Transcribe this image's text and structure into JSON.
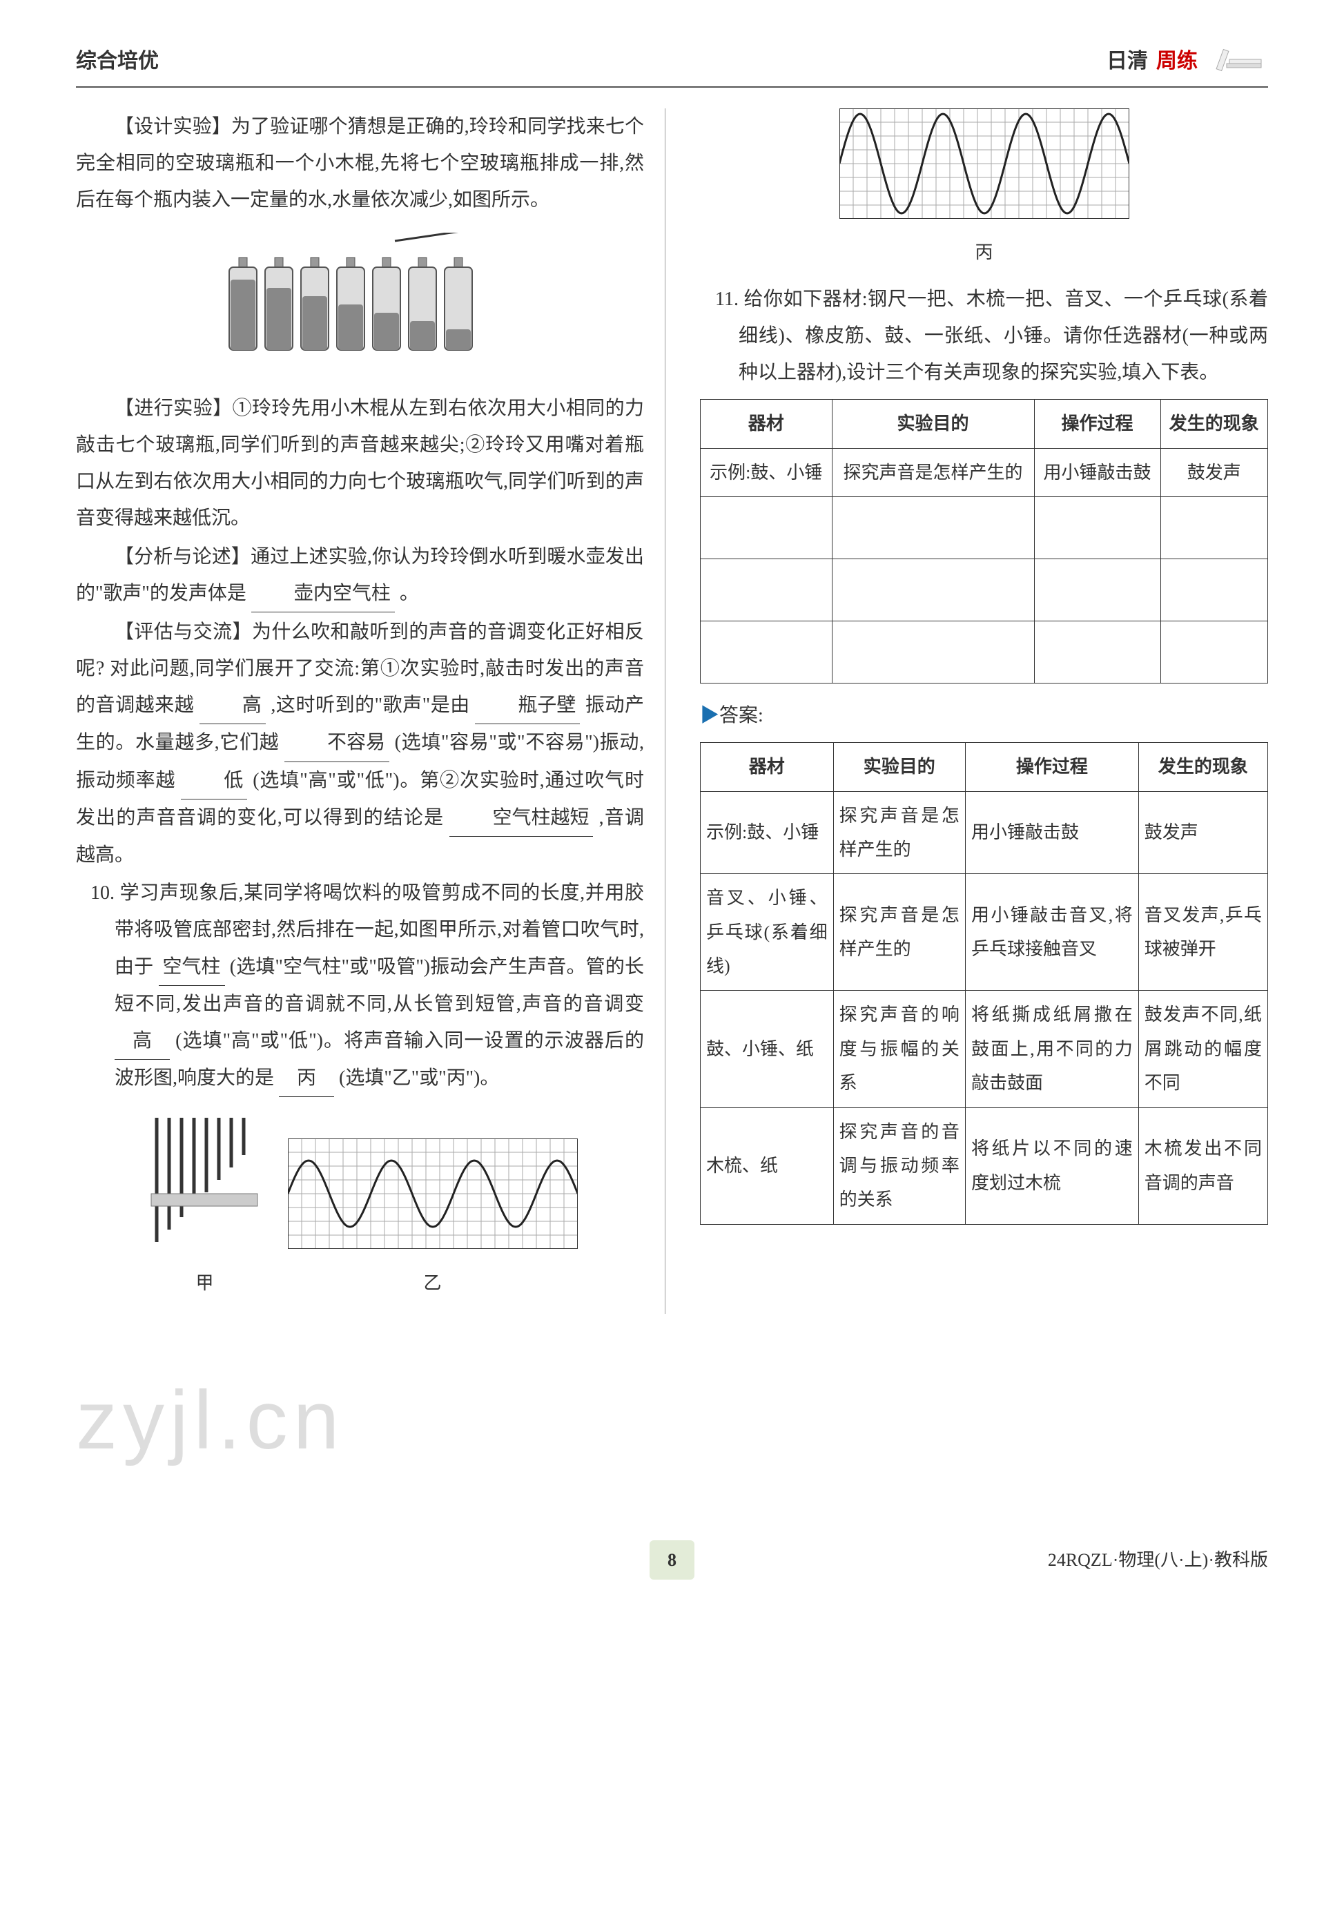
{
  "header": {
    "left": "综合培优",
    "right1": "日清",
    "right2": "周练"
  },
  "left_col": {
    "p1": "【设计实验】为了验证哪个猜想是正确的,玲玲和同学找来七个完全相同的空玻璃瓶和一个小木棍,先将七个空玻璃瓶排成一排,然后在每个瓶内装入一定量的水,水量依次减少,如图所示。",
    "bottles": {
      "count": 7,
      "fill_levels": [
        0.85,
        0.75,
        0.65,
        0.55,
        0.45,
        0.35,
        0.25
      ],
      "bottle_color": "#666",
      "water_color": "#888"
    },
    "p2": "【进行实验】①玲玲先用小木棍从左到右依次用大小相同的力敲击七个玻璃瓶,同学们听到的声音越来越尖;②玲玲又用嘴对着瓶口从左到右依次用大小相同的力向七个玻璃瓶吹气,同学们听到的声音变得越来越低沉。",
    "p3a": "【分析与论述】通过上述实验,你认为玲玲倒水听到暖水壶发出的\"歌声\"的发声体是",
    "p3_blank": "壶内空气柱",
    "p3b": "。",
    "p4a": "【评估与交流】为什么吹和敲听到的声音的音调变化正好相反呢? 对此问题,同学们展开了交流:第①次实验时,敲击时发出的声音的音调越来越",
    "p4_blank1": "高",
    "p4b": ",这时听到的\"歌声\"是由",
    "p4_blank2": "瓶子壁",
    "p4c": "振动产生的。水量越多,它们越",
    "p4_blank3": "不容易",
    "p4d": "(选填\"容易\"或\"不容易\")振动,振动频率越",
    "p4_blank4": "低",
    "p4e": "(选填\"高\"或\"低\")。第②次实验时,通过吹气时发出的声音音调的变化,可以得到的结论是",
    "p4_blank5": "空气柱越短",
    "p4f": ",音调越高。",
    "q10_num": "10.",
    "q10a": "学习声现象后,某同学将喝饮料的吸管剪成不同的长度,并用胶带将吸管底部密封,然后排在一起,如图甲所示,对着管口吹气时,由于",
    "q10_blank1": "空气柱",
    "q10b": "(选填\"空气柱\"或\"吸管\")振动会产生声音。管的长短不同,发出声音的音调就不同,从长管到短管,声音的音调变",
    "q10_blank2": "高",
    "q10c": "(选填\"高\"或\"低\")。将声音输入同一设置的示波器后的波形图,响度大的是",
    "q10_blank3": "丙",
    "q10d": "(选填\"乙\"或\"丙\")。",
    "fig_labels": {
      "jia": "甲",
      "yi": "乙"
    }
  },
  "right_col": {
    "fig_bing": "丙",
    "q11_num": "11.",
    "q11": "给你如下器材:钢尺一把、木梳一把、音叉、一个乒乓球(系着细线)、橡皮筋、鼓、一张纸、小锤。请你任选器材(一种或两种以上器材),设计三个有关声现象的探究实验,填入下表。",
    "table_blank": {
      "headers": [
        "器材",
        "实验目的",
        "操作过程",
        "发生的现象"
      ],
      "example_row": [
        "示例:鼓、小锤",
        "探究声音是怎样产生的",
        "用小锤敲击鼓",
        "鼓发声"
      ],
      "empty_rows": 3
    },
    "answer_label": "答案:",
    "table_answer": {
      "headers": [
        "器材",
        "实验目的",
        "操作过程",
        "发生的现象"
      ],
      "rows": [
        [
          "示例:鼓、小锤",
          "探究声音是怎样产生的",
          "用小锤敲击鼓",
          "鼓发声"
        ],
        [
          "音叉、小锤、乒乓球(系着细线)",
          "探究声音是怎样产生的",
          "用小锤敲击音叉,将乒乓球接触音叉",
          "音叉发声,乒乓球被弹开"
        ],
        [
          "鼓、小锤、纸",
          "探究声音的响度与振幅的关系",
          "将纸撕成纸屑撒在鼓面上,用不同的力敲击鼓面",
          "鼓发声不同,纸屑跳动的幅度不同"
        ],
        [
          "木梳、纸",
          "探究声音的音调与振动频率的关系",
          "将纸片以不同的速度划过木梳",
          "木梳发出不同音调的声音"
        ]
      ]
    }
  },
  "watermark": "zyjl.cn",
  "footer": {
    "page": "8",
    "right": "24RQZL·物理(八·上)·教科版"
  },
  "styling": {
    "text_color": "#333333",
    "accent_red": "#cc0000",
    "answer_blue": "#1a6fb0",
    "grid_color": "#888888",
    "wave_yi": {
      "cycles": 3.5,
      "amplitude": 0.6
    },
    "wave_bing": {
      "cycles": 3.5,
      "amplitude": 0.9
    }
  }
}
